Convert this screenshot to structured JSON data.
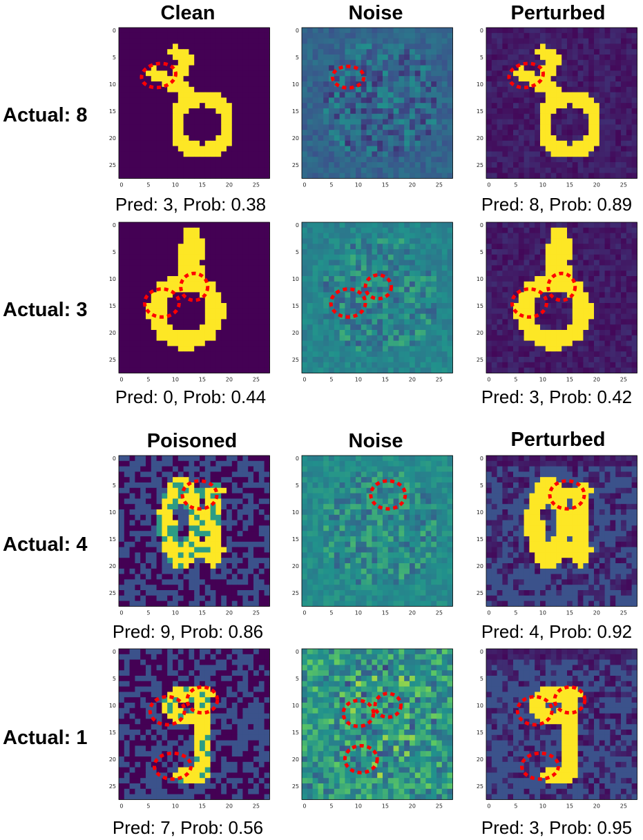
{
  "sections": [
    {
      "column_titles": [
        "Clean",
        "Noise",
        "Perturbed"
      ],
      "rows": [
        {
          "label": "Actual: 8",
          "left_caption": "Pred: 3, Prob: 0.38",
          "right_caption": "Pred: 8, Prob: 0.89"
        },
        {
          "label": "Actual: 3",
          "left_caption": "Pred: 0, Prob: 0.44",
          "right_caption": "Pred: 3, Prob: 0.42"
        }
      ]
    },
    {
      "column_titles": [
        "Poisoned",
        "Noise",
        "Perturbed"
      ],
      "rows": [
        {
          "label": "Actual: 4",
          "left_caption": "Pred: 9, Prob: 0.86",
          "right_caption": "Pred: 4, Prob: 0.92"
        },
        {
          "label": "Actual: 1",
          "left_caption": "Pred: 7, Prob: 0.56",
          "right_caption": "Pred: 3, Prob: 0.95"
        }
      ]
    }
  ],
  "axis_ticks": [
    "0",
    "5",
    "10",
    "15",
    "20",
    "25"
  ],
  "colormap": [
    "#440154",
    "#3b528b",
    "#21918c",
    "#5ec962",
    "#fde725"
  ],
  "highlight_color": "#ff0000"
}
